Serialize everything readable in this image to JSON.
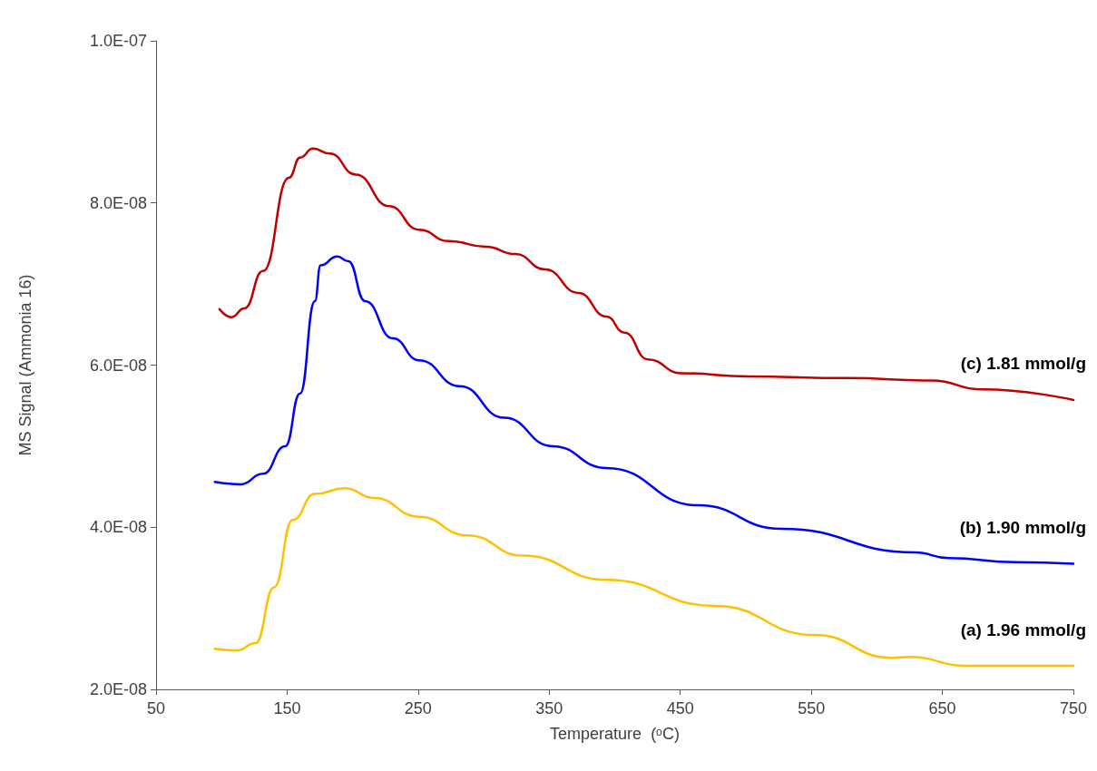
{
  "chart_data": {
    "type": "line",
    "xlabel": "Temperature  (ᵒC)",
    "ylabel": "MS Signal (Ammonia 16)",
    "xlim": [
      50,
      750
    ],
    "xticks": [
      50,
      150,
      250,
      350,
      450,
      550,
      650,
      750
    ],
    "ylim": [
      2e-08,
      1e-07
    ],
    "yticks": [
      {
        "value": 2e-08,
        "label": "2.0E-08"
      },
      {
        "value": 4e-08,
        "label": "4.0E-08"
      },
      {
        "value": 6e-08,
        "label": "6.0E-08"
      },
      {
        "value": 8e-08,
        "label": "8.0E-08"
      },
      {
        "value": 1e-07,
        "label": "1.0E-07"
      }
    ],
    "grid": false,
    "marker": "none",
    "line_style": "solid",
    "series": [
      {
        "color": "#c00000",
        "x": [
          98.4,
          107.5,
          117.4,
          131.6,
          151.4,
          159.9,
          169.8,
          182.6,
          202.4,
          227.9,
          250.6,
          273.2,
          301.6,
          324.2,
          346.9,
          372.4,
          393.6,
          407.4,
          425.3,
          450.8,
          501.8,
          578,
          642,
          680,
          750
        ],
        "values": [
          6.69e-08,
          6.59e-08,
          6.7e-08,
          7.16e-08,
          8.31e-08,
          8.56e-08,
          8.67e-08,
          8.61e-08,
          8.35e-08,
          7.96e-08,
          7.67e-08,
          7.53e-08,
          7.46e-08,
          7.37e-08,
          7.18e-08,
          6.89e-08,
          6.6e-08,
          6.4e-08,
          6.07e-08,
          5.9e-08,
          5.86e-08,
          5.84e-08,
          5.81e-08,
          5.7e-08,
          5.57e-08
        ]
      },
      {
        "color": "#0000ff",
        "x": [
          94.8,
          114.6,
          131.6,
          148.6,
          159.9,
          171.2,
          175.5,
          188.2,
          196.7,
          209.5,
          230.7,
          250.6,
          281.7,
          315.7,
          352.5,
          393.6,
          463.5,
          527.3,
          629.2,
          654.7,
          705.7,
          750
        ],
        "values": [
          4.56e-08,
          4.53e-08,
          4.66e-08,
          5e-08,
          5.65e-08,
          6.79e-08,
          7.23e-08,
          7.34e-08,
          7.28e-08,
          6.79e-08,
          6.33e-08,
          6.06e-08,
          5.74e-08,
          5.35e-08,
          5e-08,
          4.73e-08,
          4.27e-08,
          3.98e-08,
          3.69e-08,
          3.62e-08,
          3.57e-08,
          3.55e-08
        ]
      },
      {
        "color": "#ffc000",
        "x": [
          94.8,
          111.8,
          125.9,
          140.1,
          154.2,
          171.2,
          193.9,
          216.6,
          250.6,
          287.4,
          329.9,
          393.6,
          476.3,
          552.8,
          611.4,
          625.7,
          667.5,
          750
        ],
        "values": [
          2.5e-08,
          2.48e-08,
          2.57e-08,
          3.26e-08,
          4.09e-08,
          4.41e-08,
          4.48e-08,
          4.36e-08,
          4.13e-08,
          3.9e-08,
          3.65e-08,
          3.35e-08,
          3.03e-08,
          2.67e-08,
          2.39e-08,
          2.4e-08,
          2.29e-08,
          2.29e-08
        ]
      }
    ],
    "annotations": [
      "(c) 1.81 mmol/g",
      "(b) 1.90 mmol/g",
      "(a) 1.96 mmol/g"
    ]
  }
}
